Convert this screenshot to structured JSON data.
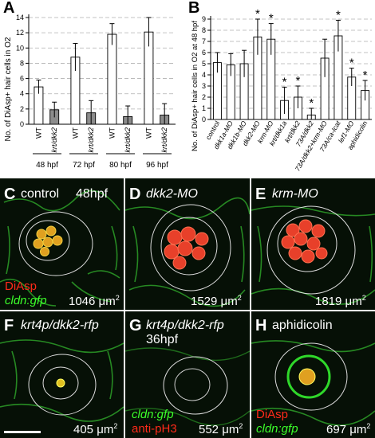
{
  "chart_data": [
    {
      "type": "bar",
      "panel_label": "A",
      "ylabel": "No. of DiAsp+ hair cells in O2",
      "ylim": [
        0,
        14
      ],
      "yticks": [
        "0",
        "2",
        "4",
        "6",
        "8",
        "10",
        "12",
        "14"
      ],
      "groups": [
        "48 hpf",
        "72 hpf",
        "80 hpf",
        "96 hpf"
      ],
      "tick_labels": [
        "WT",
        "krt/dkk2"
      ],
      "colors": {
        "WT": "#ffffff",
        "krt/dkk2": "#8c8c8c"
      },
      "series": [
        {
          "name": "WT",
          "values": [
            4.9,
            8.8,
            11.8,
            12.1
          ],
          "errors": [
            0.9,
            1.8,
            1.4,
            1.9
          ]
        },
        {
          "name": "krt/dkk2",
          "values": [
            1.9,
            1.5,
            1.0,
            1.2
          ],
          "errors": [
            1.0,
            1.6,
            1.4,
            1.5
          ]
        }
      ]
    },
    {
      "type": "bar",
      "panel_label": "B",
      "ylabel": "No. of DiAsp+ hair cells in O2 at 48 hpf",
      "ylim": [
        0,
        9
      ],
      "yticks": [
        "0",
        "1",
        "2",
        "3",
        "4",
        "5",
        "6",
        "7",
        "8",
        "9"
      ],
      "categories": [
        "control",
        "dkk1a-MO",
        "dkk1b-MO",
        "dkk2-MO",
        "krm-MO",
        "krt/dkk1a",
        "krt/dkk2",
        "73A/dkk2",
        "73A/dkk2+krm-MO",
        "73A/ca-Icat",
        "lef1-MO",
        "aphidicolin"
      ],
      "values": [
        5.1,
        4.9,
        5.0,
        7.4,
        7.2,
        1.7,
        2.0,
        0.4,
        5.5,
        7.5,
        3.8,
        2.6
      ],
      "errors": [
        0.9,
        1.0,
        1.2,
        1.6,
        1.4,
        1.2,
        1.0,
        0.6,
        1.7,
        1.4,
        0.8,
        0.9
      ],
      "significant": [
        false,
        false,
        false,
        true,
        true,
        true,
        true,
        true,
        false,
        true,
        true,
        true
      ],
      "significance_marker": "*"
    }
  ],
  "panels": [
    {
      "letter": "C",
      "title": "control",
      "stage": "48hpf",
      "area": "1046",
      "legend": [
        "DiAsp",
        "cldn:gfp"
      ]
    },
    {
      "letter": "D",
      "title": "dkk2-MO",
      "area": "1529"
    },
    {
      "letter": "E",
      "title": "krm-MO",
      "area": "1819"
    },
    {
      "letter": "F",
      "title": "krt4p/dkk2-rfp",
      "area": "405"
    },
    {
      "letter": "G",
      "title": "krt4p/dkk2-rfp",
      "stage": "36hpf",
      "area": "552",
      "legend": [
        "cldn:gfp",
        "anti-pH3"
      ]
    },
    {
      "letter": "H",
      "title": "aphidicolin",
      "area": "697",
      "legend": [
        "DiAsp",
        "cldn:gfp"
      ]
    }
  ],
  "area_unit": "μm",
  "area_unit_exp": "2"
}
